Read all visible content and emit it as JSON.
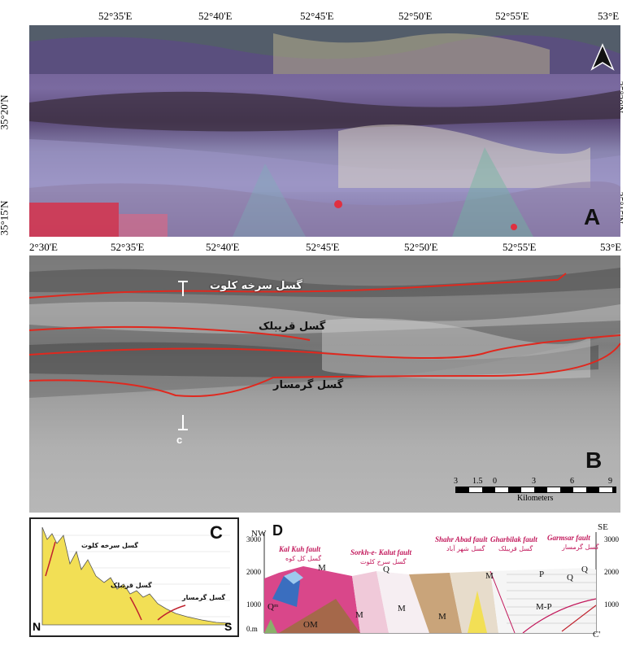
{
  "top_lon_labels": [
    "52°35'E",
    "52°40'E",
    "52°45'E",
    "52°50'E",
    "52°55'E",
    "53°E"
  ],
  "mid_lon_labels": [
    "2°30'E",
    "52°35'E",
    "52°40'E",
    "52°45'E",
    "52°50'E",
    "52°55'E",
    "53°E"
  ],
  "lat_labels": [
    "35°20'N",
    "35°15'N"
  ],
  "panel_a": {
    "letter": "A",
    "north_arrow": "north-arrow-icon"
  },
  "panel_b": {
    "letter": "B",
    "fault_labels": [
      "گسل سرخه کلوت",
      "گسل قریبلک",
      "گسل گرمسار"
    ],
    "section_marker": "c",
    "scale_ticks": [
      "3",
      "1.5",
      "0",
      "3",
      "6",
      "9"
    ],
    "scale_unit": "Kilometers"
  },
  "panel_c": {
    "letter": "C",
    "fault_labels": [
      "گسل سرخه کلوت",
      "گسل قریبلک",
      "گسل گرمسار"
    ],
    "end_labels": [
      "N",
      "S"
    ]
  },
  "panel_d": {
    "letter": "D",
    "ends": [
      "NW",
      "SE"
    ],
    "elev_ticks": [
      "3000",
      "2000",
      "1000",
      "0.m"
    ],
    "faults": [
      {
        "en": "Kal Kuh fault",
        "fa": "گسل کل کوه"
      },
      {
        "en": "Sorkh-e- Kalut fault",
        "fa": "گسل سرخ کلوت"
      },
      {
        "en": "Shahr Abad fault",
        "fa": "گسل شهر آباد"
      },
      {
        "en": "Gharbilak fault",
        "fa": "گسل قریبلک"
      },
      {
        "en": "Garmsar fault",
        "fa": "گسل گرمسار"
      }
    ],
    "units": [
      "M",
      "Q",
      "Qᵐ",
      "OM",
      "M",
      "M",
      "M",
      "M",
      "M-P",
      "P",
      "Q",
      "Q"
    ],
    "section_end": "C'"
  },
  "colors": {
    "fault_line": "#e0281e",
    "fault_text": "#c2185b",
    "profile_fill": "#f2df55",
    "unit_pink": "#d9478a",
    "unit_brown": "#a5684a",
    "unit_tan": "#c9a47a",
    "unit_blue": "#3a6ebf"
  }
}
